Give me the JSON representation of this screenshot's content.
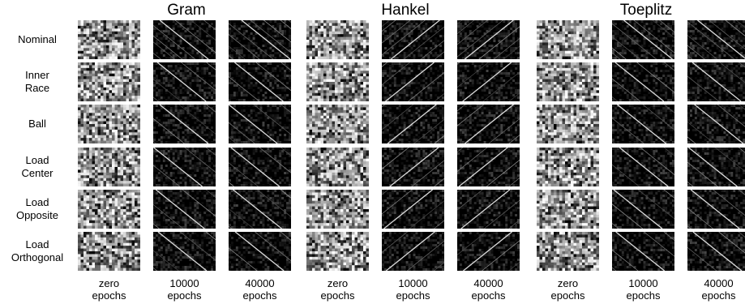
{
  "figure": {
    "groups": [
      "Gram",
      "Hankel",
      "Toeplitz"
    ],
    "rows": [
      {
        "lines": [
          "Nominal"
        ]
      },
      {
        "lines": [
          "Inner",
          "Race"
        ]
      },
      {
        "lines": [
          "Ball"
        ]
      },
      {
        "lines": [
          "Load",
          "Center"
        ]
      },
      {
        "lines": [
          "Load",
          "Opposite"
        ]
      },
      {
        "lines": [
          "Load",
          "Orthogonal"
        ]
      }
    ],
    "columns": [
      {
        "top": "zero",
        "bottom": "epochs"
      },
      {
        "top": "10000",
        "bottom": "epochs"
      },
      {
        "top": "40000",
        "bottom": "epochs"
      }
    ],
    "palette": {
      "background": "#000000",
      "bright": "#ffffff"
    }
  }
}
